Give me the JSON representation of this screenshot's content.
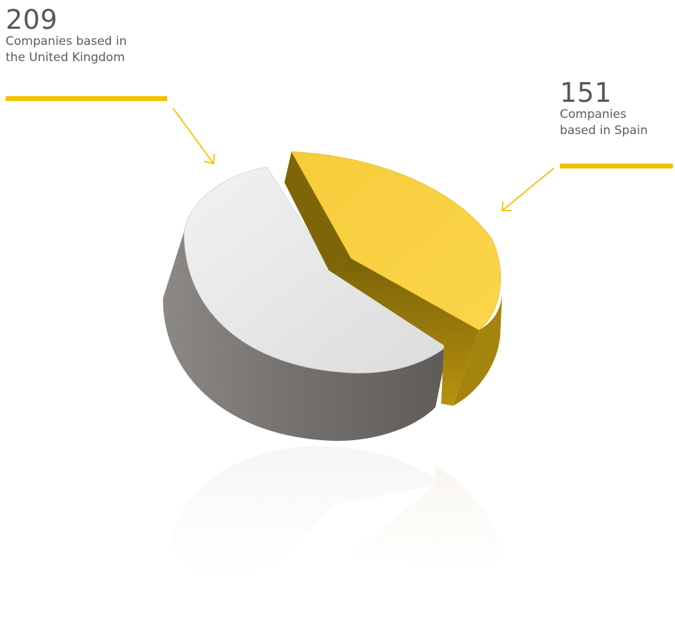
{
  "chart_data": {
    "type": "pie",
    "title": "",
    "slices": [
      {
        "label": "Companies based in the United Kingdom",
        "value": 209,
        "color": "#e9e9e9",
        "side_color": "#7a7674"
      },
      {
        "label": "Companies based in Spain",
        "value": 151,
        "color": "#f7cb3a",
        "side_color": "#9a7c10"
      }
    ],
    "style": "3d-exploded-with-reflection",
    "accent_color": "#f2c200"
  },
  "callouts": {
    "uk": {
      "value": "209",
      "text": "Companies based in\nthe United Kingdom"
    },
    "spain": {
      "value": "151",
      "text": "Companies\nbased in Spain"
    }
  }
}
